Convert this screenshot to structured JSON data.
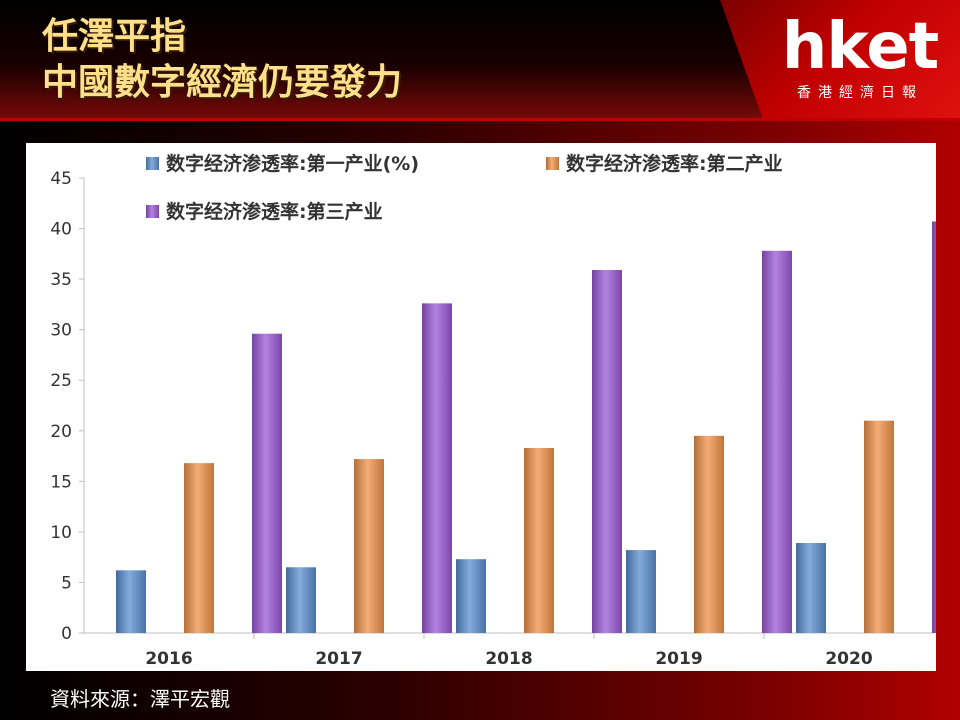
{
  "header": {
    "title_line1": "任澤平指",
    "title_line2": "中國數字經濟仍要發力",
    "logo_word": "hket",
    "logo_sub": "香港經濟日報"
  },
  "source": "資料來源：澤平宏觀",
  "colors": {
    "series1": "#5b8fd0",
    "series2": "#f0924a",
    "series3": "#9b59d6",
    "title": "#ffe08a",
    "brand_red": "#c00000"
  },
  "chart_data": {
    "type": "bar",
    "categories": [
      "2016",
      "2017",
      "2018",
      "2019",
      "2020"
    ],
    "series": [
      {
        "name": "数字经济渗透率:第一产业(%)",
        "values": [
          6.2,
          6.5,
          7.3,
          8.2,
          8.9
        ]
      },
      {
        "name": "数字经济渗透率:第二产业",
        "values": [
          16.8,
          17.2,
          18.3,
          19.5,
          21.0
        ]
      },
      {
        "name": "数字经济渗透率:第三产业",
        "values": [
          29.6,
          32.6,
          35.9,
          37.8,
          40.7
        ]
      }
    ],
    "ylim": [
      0,
      45
    ],
    "yticks": [
      0,
      5,
      10,
      15,
      20,
      25,
      30,
      35,
      40,
      45
    ],
    "grid": false,
    "legend": "top"
  }
}
